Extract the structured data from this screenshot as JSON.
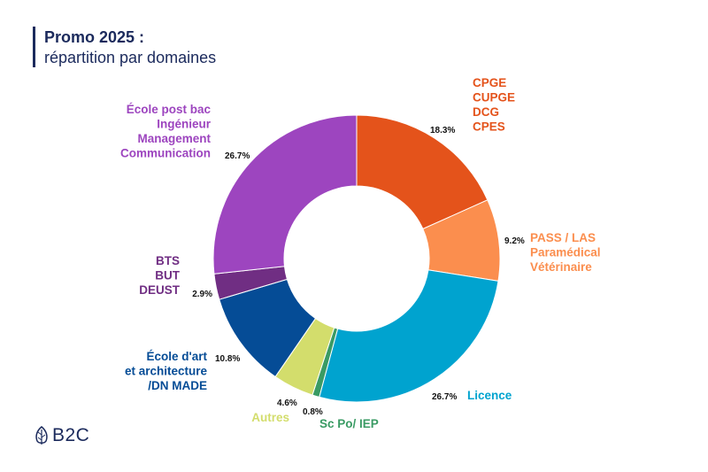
{
  "title": {
    "line1": "Promo 2025 :",
    "line2": "répartition par domaines"
  },
  "logo": {
    "text": "B2C",
    "icon": "leaf-icon"
  },
  "chart_data": {
    "type": "pie",
    "donut": true,
    "title": "Promo 2025 : répartition par domaines",
    "slices": [
      {
        "label": [
          "CPGE",
          "CUPGE",
          "DCG",
          "CPES"
        ],
        "value": 18.3,
        "value_label": "18.3%",
        "color": "#e4531b"
      },
      {
        "label": [
          "PASS / LAS",
          "Paramédical",
          "Vétérinaire"
        ],
        "value": 9.2,
        "value_label": "9.2%",
        "color": "#fb8e4e"
      },
      {
        "label": [
          "Licence"
        ],
        "value": 26.7,
        "value_label": "26.7%",
        "color": "#00a3cf"
      },
      {
        "label": [
          "Sc Po/ IEP"
        ],
        "value": 0.8,
        "value_label": "0.8%",
        "color": "#3a9b64"
      },
      {
        "label": [
          "Autres"
        ],
        "value": 4.6,
        "value_label": "4.6%",
        "color": "#d3dd6c"
      },
      {
        "label": [
          "École d'art",
          "et architecture",
          "/DN MADE"
        ],
        "value": 10.8,
        "value_label": "10.8%",
        "color": "#054c96"
      },
      {
        "label": [
          "BTS",
          "BUT",
          "DEUST"
        ],
        "value": 2.9,
        "value_label": "2.9%",
        "color": "#702e83"
      },
      {
        "label": [
          "École post bac",
          "Ingénieur",
          "Management",
          "Communication"
        ],
        "value": 26.7,
        "value_label": "26.7%",
        "color": "#9d45bf"
      }
    ]
  }
}
